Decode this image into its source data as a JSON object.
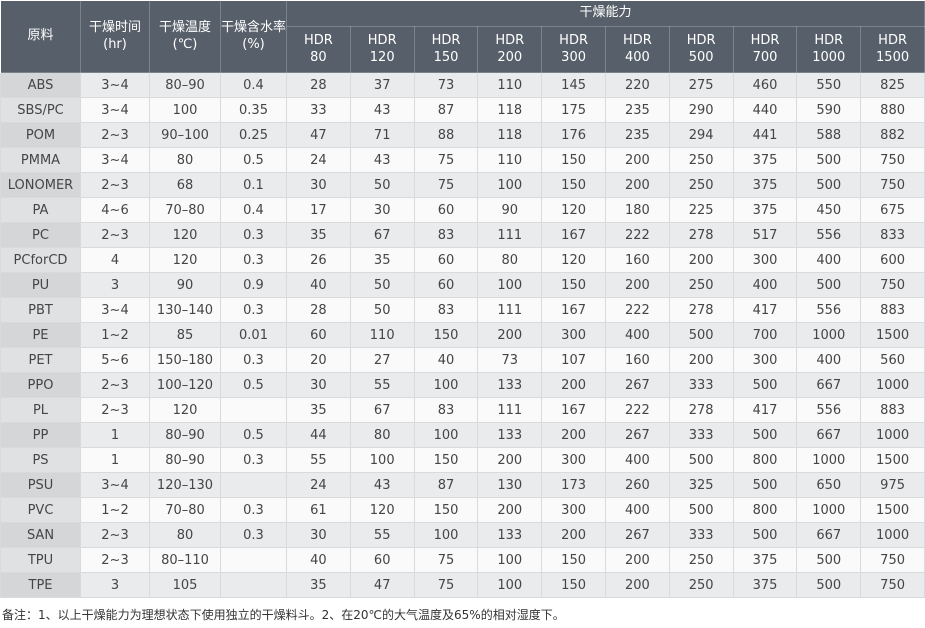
{
  "colors": {
    "header_bg": "#57606a",
    "row_odd": "#eaebec",
    "row_even": "#fafafa",
    "mat_odd": "#d5d6d8",
    "mat_even": "#e0e1e3",
    "grid_color": "#d9dadb",
    "text_color": "#454545"
  },
  "table": {
    "headers": {
      "material": "原料",
      "time": {
        "label": "干燥时间",
        "sub": "(hr)"
      },
      "temp": {
        "label": "干燥温度",
        "sub": "(℃)"
      },
      "moisture": {
        "label": "干燥含水率",
        "sub": "(%)"
      },
      "capacity": "干燥能力",
      "hdr_label": "HDR",
      "hdr_sizes": [
        "80",
        "120",
        "150",
        "200",
        "300",
        "400",
        "500",
        "700",
        "1000",
        "1500"
      ]
    },
    "rows": [
      {
        "material": "ABS",
        "time": "3~4",
        "temp": "80–90",
        "moisture": "0.4",
        "values": [
          28,
          37,
          73,
          110,
          145,
          220,
          275,
          460,
          550,
          825
        ]
      },
      {
        "material": "SBS/PC",
        "time": "3~4",
        "temp": "100",
        "moisture": "0.35",
        "values": [
          33,
          43,
          87,
          118,
          175,
          235,
          290,
          440,
          590,
          880
        ]
      },
      {
        "material": "POM",
        "time": "2~3",
        "temp": "90–100",
        "moisture": "0.25",
        "values": [
          47,
          71,
          88,
          118,
          176,
          235,
          294,
          441,
          588,
          882
        ]
      },
      {
        "material": "PMMA",
        "time": "3~4",
        "temp": "80",
        "moisture": "0.5",
        "values": [
          24,
          43,
          75,
          110,
          150,
          200,
          250,
          375,
          500,
          750
        ]
      },
      {
        "material": "LONOMER",
        "time": "2~3",
        "temp": "68",
        "moisture": "0.1",
        "values": [
          30,
          50,
          75,
          100,
          150,
          200,
          250,
          375,
          500,
          750
        ]
      },
      {
        "material": "PA",
        "time": "4~6",
        "temp": "70–80",
        "moisture": "0.4",
        "values": [
          17,
          30,
          60,
          90,
          120,
          180,
          225,
          375,
          450,
          675
        ]
      },
      {
        "material": "PC",
        "time": "2~3",
        "temp": "120",
        "moisture": "0.3",
        "values": [
          35,
          67,
          83,
          111,
          167,
          222,
          278,
          517,
          556,
          833
        ]
      },
      {
        "material": "PCforCD",
        "time": "4",
        "temp": "120",
        "moisture": "0.3",
        "values": [
          26,
          35,
          60,
          80,
          120,
          160,
          200,
          300,
          400,
          600
        ]
      },
      {
        "material": "PU",
        "time": "3",
        "temp": "90",
        "moisture": "0.9",
        "values": [
          40,
          50,
          60,
          100,
          150,
          200,
          250,
          400,
          500,
          750
        ]
      },
      {
        "material": "PBT",
        "time": "3~4",
        "temp": "130–140",
        "moisture": "0.3",
        "values": [
          28,
          50,
          83,
          111,
          167,
          222,
          278,
          417,
          556,
          883
        ]
      },
      {
        "material": "PE",
        "time": "1~2",
        "temp": "85",
        "moisture": "0.01",
        "values": [
          60,
          110,
          150,
          200,
          300,
          400,
          500,
          700,
          1000,
          1500
        ]
      },
      {
        "material": "PET",
        "time": "5~6",
        "temp": "150–180",
        "moisture": "0.3",
        "values": [
          20,
          27,
          40,
          73,
          107,
          160,
          200,
          300,
          400,
          560
        ]
      },
      {
        "material": "PPO",
        "time": "2~3",
        "temp": "100–120",
        "moisture": "0.5",
        "values": [
          30,
          55,
          100,
          133,
          200,
          267,
          333,
          500,
          667,
          1000
        ]
      },
      {
        "material": "PL",
        "time": "2~3",
        "temp": "120",
        "moisture": "",
        "values": [
          35,
          67,
          83,
          111,
          167,
          222,
          278,
          417,
          556,
          883
        ]
      },
      {
        "material": "PP",
        "time": "1",
        "temp": "80–90",
        "moisture": "0.5",
        "values": [
          44,
          80,
          100,
          133,
          200,
          267,
          333,
          500,
          667,
          1000
        ]
      },
      {
        "material": "PS",
        "time": "1",
        "temp": "80–90",
        "moisture": "0.3",
        "values": [
          55,
          100,
          150,
          200,
          300,
          400,
          500,
          800,
          1000,
          1500
        ]
      },
      {
        "material": "PSU",
        "time": "3~4",
        "temp": "120–130",
        "moisture": "",
        "values": [
          24,
          43,
          87,
          130,
          173,
          260,
          325,
          500,
          650,
          975
        ]
      },
      {
        "material": "PVC",
        "time": "1~2",
        "temp": "70–80",
        "moisture": "0.3",
        "values": [
          61,
          120,
          150,
          200,
          300,
          400,
          500,
          800,
          1000,
          1500
        ]
      },
      {
        "material": "SAN",
        "time": "2~3",
        "temp": "80",
        "moisture": "0.3",
        "values": [
          30,
          55,
          100,
          133,
          200,
          267,
          333,
          500,
          667,
          1000
        ]
      },
      {
        "material": "TPU",
        "time": "2~3",
        "temp": "80–110",
        "moisture": "",
        "values": [
          40,
          60,
          75,
          100,
          150,
          200,
          250,
          375,
          500,
          750
        ]
      },
      {
        "material": "TPE",
        "time": "3",
        "temp": "105",
        "moisture": "",
        "values": [
          35,
          47,
          75,
          100,
          150,
          200,
          250,
          375,
          500,
          750
        ]
      }
    ]
  },
  "footnote": "备注：1、以上干燥能力为理想状态下使用独立的干燥料斗。2、在20℃的大气温度及65%的相对湿度下。"
}
